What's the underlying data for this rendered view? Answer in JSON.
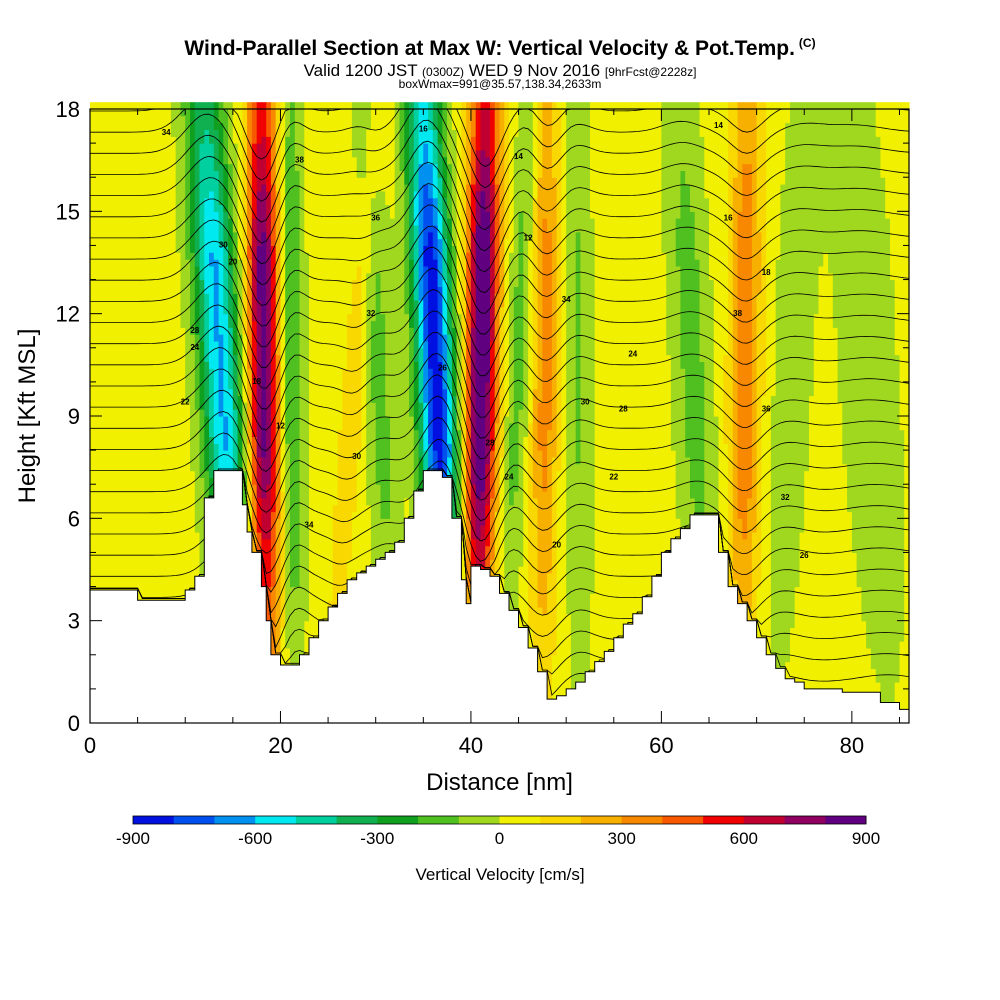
{
  "header": {
    "title": "Wind-Parallel Section at Max W: Vertical Velocity & Pot.Temp.",
    "copyright": "(C)",
    "valid_prefix": "Valid 1200 JST",
    "valid_zulu": "(0300Z)",
    "valid_date": "WED 9 Nov 2016",
    "forecast_info": "[9hrFcst@2228z]",
    "boxwmax": "boxWmax=991@35.57,138.34,2633m"
  },
  "chart_data": {
    "type": "heatmap",
    "title": "Wind-Parallel Section at Max W: Vertical Velocity & Pot.Temp.",
    "xlabel": "Distance [nm]",
    "ylabel": "Height [Kft MSL]",
    "xlim": [
      0,
      86
    ],
    "ylim": [
      0,
      18
    ],
    "x_ticks": [
      0,
      20,
      40,
      60,
      80
    ],
    "y_ticks": [
      0,
      3,
      6,
      9,
      12,
      15,
      18
    ],
    "colorbar": {
      "label": "Vertical Velocity [cm/s]",
      "range": [
        -900,
        900
      ],
      "step": 100,
      "tick_labels": [
        "-900",
        "-600",
        "-300",
        "0",
        "300",
        "600",
        "900"
      ],
      "colors": [
        "#0010e0",
        "#0050f0",
        "#0090f0",
        "#00e8f0",
        "#00d0a0",
        "#10b050",
        "#10a020",
        "#50c020",
        "#a0d820",
        "#f0f000",
        "#f8d800",
        "#f8b000",
        "#f88800",
        "#f85800",
        "#f00000",
        "#c00030",
        "#900060",
        "#600080"
      ]
    },
    "terrain": {
      "x": [
        0,
        4,
        5,
        9,
        10,
        11,
        12,
        13,
        15,
        16,
        16.5,
        17,
        18,
        18.5,
        19,
        20,
        21,
        22,
        23,
        24,
        25,
        26,
        27,
        28,
        29,
        30,
        31,
        32,
        33,
        34,
        35,
        36,
        37,
        38,
        39,
        39.5,
        40,
        41,
        42,
        43,
        44,
        45,
        46,
        47,
        48,
        49,
        50,
        51,
        52,
        53,
        54,
        55,
        56,
        57,
        58,
        59,
        60,
        61,
        62,
        63,
        64,
        65,
        66,
        67,
        68,
        69,
        70,
        71,
        72,
        73,
        74,
        75,
        76,
        77,
        78,
        79,
        80,
        81,
        82,
        83,
        84,
        85,
        86
      ],
      "y": [
        3.9,
        3.9,
        3.6,
        3.6,
        3.9,
        4.3,
        6.6,
        7.4,
        7.4,
        6.4,
        5.6,
        5.0,
        4.0,
        3.0,
        2.0,
        1.7,
        1.7,
        2.0,
        2.5,
        3.0,
        3.4,
        3.8,
        4.2,
        4.4,
        4.6,
        4.8,
        5.0,
        5.3,
        6.0,
        6.8,
        7.4,
        7.4,
        7.2,
        6.0,
        4.2,
        3.5,
        4.6,
        4.5,
        4.3,
        3.8,
        3.3,
        2.8,
        2.2,
        1.5,
        0.7,
        0.8,
        1.0,
        1.2,
        1.5,
        1.8,
        2.1,
        2.5,
        2.9,
        3.2,
        3.7,
        4.3,
        5.0,
        5.4,
        5.7,
        6.1,
        6.1,
        6.1,
        5.0,
        4.0,
        3.5,
        3.0,
        2.5,
        2.0,
        1.6,
        1.3,
        1.2,
        1.0,
        1.0,
        1.0,
        1.0,
        0.9,
        0.9,
        0.9,
        0.9,
        0.6,
        0.6,
        0.4,
        0.3
      ]
    },
    "velocity_features": [
      {
        "x_base": 16,
        "x_top": 12,
        "w": -650,
        "half_width": 2.2
      },
      {
        "x_base": 18.5,
        "x_top": 18,
        "w": 820,
        "half_width": 1.6
      },
      {
        "x_base": 21.5,
        "x_top": 21,
        "w": -260,
        "half_width": 1.2
      },
      {
        "x_base": 25,
        "x_top": 30,
        "w": 150,
        "half_width": 1.2
      },
      {
        "x_base": 32,
        "x_top": 29,
        "w": -180,
        "half_width": 1.5
      },
      {
        "x_base": 38,
        "x_top": 35,
        "w": -900,
        "half_width": 2.0
      },
      {
        "x_base": 40.5,
        "x_top": 41.5,
        "w": 920,
        "half_width": 1.6
      },
      {
        "x_base": 43.5,
        "x_top": 46,
        "w": -180,
        "half_width": 1.2
      },
      {
        "x_base": 47.5,
        "x_top": 48,
        "w": 300,
        "half_width": 1.4
      },
      {
        "x_base": 51.5,
        "x_top": 51,
        "w": -150,
        "half_width": 1.5
      },
      {
        "x_base": 65,
        "x_top": 62,
        "w": -180,
        "half_width": 2.0
      },
      {
        "x_base": 68.5,
        "x_top": 69,
        "w": 350,
        "half_width": 1.6
      },
      {
        "x_base": 72,
        "x_top": 75,
        "w": -120,
        "half_width": 2.0
      },
      {
        "x_base": 84,
        "x_top": 80,
        "w": -120,
        "half_width": 3.0
      }
    ],
    "contour_labels": [
      "34",
      "30",
      "28",
      "24",
      "22",
      "20",
      "18",
      "38",
      "36",
      "32",
      "26",
      "16",
      "14",
      "12"
    ]
  }
}
